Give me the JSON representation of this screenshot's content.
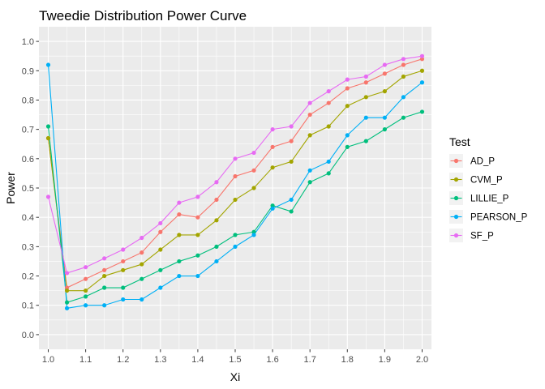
{
  "chart_data": {
    "type": "line",
    "title": "Tweedie Distribution Power Curve",
    "xlabel": "Xi",
    "ylabel": "Power",
    "xlim": [
      1.0,
      2.0
    ],
    "ylim": [
      0.0,
      1.0
    ],
    "x_ticks": [
      "1.0",
      "1.1",
      "1.2",
      "1.3",
      "1.4",
      "1.5",
      "1.6",
      "1.7",
      "1.8",
      "1.9",
      "2.0"
    ],
    "y_ticks": [
      "0.0",
      "0.1",
      "0.2",
      "0.3",
      "0.4",
      "0.5",
      "0.6",
      "0.7",
      "0.8",
      "0.9",
      "1.0"
    ],
    "grid": true,
    "legend_title": "Test",
    "legend_position": "right",
    "x": [
      1.0,
      1.05,
      1.1,
      1.15,
      1.2,
      1.25,
      1.3,
      1.35,
      1.4,
      1.45,
      1.5,
      1.55,
      1.6,
      1.65,
      1.7,
      1.75,
      1.8,
      1.85,
      1.9,
      1.95,
      2.0
    ],
    "series": [
      {
        "name": "AD_P",
        "color": "#F8766D",
        "values": [
          0.67,
          0.16,
          0.19,
          0.22,
          0.25,
          0.28,
          0.35,
          0.41,
          0.4,
          0.46,
          0.54,
          0.56,
          0.64,
          0.66,
          0.75,
          0.79,
          0.84,
          0.86,
          0.89,
          0.92,
          0.94
        ]
      },
      {
        "name": "CVM_P",
        "color": "#A3A500",
        "values": [
          0.67,
          0.15,
          0.15,
          0.2,
          0.22,
          0.24,
          0.29,
          0.34,
          0.34,
          0.39,
          0.46,
          0.5,
          0.57,
          0.59,
          0.68,
          0.71,
          0.78,
          0.81,
          0.83,
          0.88,
          0.9
        ]
      },
      {
        "name": "LILLIE_P",
        "color": "#00BF7D",
        "values": [
          0.71,
          0.11,
          0.13,
          0.16,
          0.16,
          0.19,
          0.22,
          0.25,
          0.27,
          0.3,
          0.34,
          0.35,
          0.44,
          0.42,
          0.52,
          0.55,
          0.64,
          0.66,
          0.7,
          0.74,
          0.76
        ]
      },
      {
        "name": "PEARSON_P",
        "color": "#00B0F6",
        "values": [
          0.92,
          0.09,
          0.1,
          0.1,
          0.12,
          0.12,
          0.16,
          0.2,
          0.2,
          0.25,
          0.3,
          0.34,
          0.43,
          0.46,
          0.56,
          0.59,
          0.68,
          0.74,
          0.74,
          0.81,
          0.86
        ]
      },
      {
        "name": "SF_P",
        "color": "#E76BF3",
        "values": [
          0.47,
          0.21,
          0.23,
          0.26,
          0.29,
          0.33,
          0.38,
          0.45,
          0.47,
          0.52,
          0.6,
          0.62,
          0.7,
          0.71,
          0.79,
          0.83,
          0.87,
          0.88,
          0.92,
          0.94,
          0.95
        ]
      }
    ]
  }
}
